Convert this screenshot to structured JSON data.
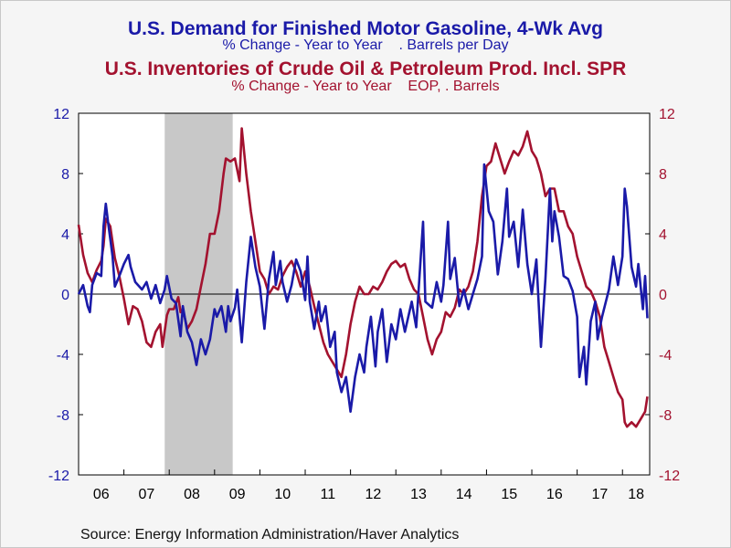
{
  "titles": {
    "series1_title": "U.S. Demand for Finished Motor Gasoline, 4-Wk Avg",
    "series1_subtitle": "% Change - Year to Year    . Barrels per Day",
    "series2_title": "U.S. Inventories of Crude Oil & Petroleum Prod. Incl. SPR",
    "series2_subtitle": "% Change - Year to Year    EOP, . Barrels"
  },
  "source": "Source:  Energy Information Administration/Haver Analytics",
  "colors": {
    "series1": "#1a1aa8",
    "series2": "#a3122f",
    "recession": "#c8c8c8",
    "plot_bg": "#ffffff",
    "page_bg": "#f5f5f5"
  },
  "chart_data": {
    "type": "line",
    "x_tick_labels": [
      "06",
      "07",
      "08",
      "09",
      "10",
      "11",
      "12",
      "13",
      "14",
      "15",
      "16",
      "17",
      "18"
    ],
    "xlim": [
      2006,
      2018.6
    ],
    "ylim": [
      -12,
      12
    ],
    "y_ticks": [
      -12,
      -8,
      -4,
      0,
      4,
      8,
      12
    ],
    "y_tick_labels": [
      "-12",
      "-8",
      "-4",
      "0",
      "4",
      "8",
      "12"
    ],
    "right_axis_ticks": [
      -12,
      -8,
      -4,
      0,
      4,
      8,
      12
    ],
    "right_axis_tick_labels": [
      "-12",
      "-8",
      "-4",
      "0",
      "4",
      "8",
      "12"
    ],
    "zero_line": true,
    "grid": false,
    "shaded_regions": [
      {
        "x0": 2007.9,
        "x1": 2009.4
      }
    ],
    "series": [
      {
        "points": [
          [
            2006.0,
            0.0
          ],
          [
            2006.1,
            0.6
          ],
          [
            2006.2,
            -0.8
          ],
          [
            2006.25,
            -1.2
          ],
          [
            2006.3,
            0.6
          ],
          [
            2006.4,
            1.4
          ],
          [
            2006.5,
            1.2
          ],
          [
            2006.55,
            4.5
          ],
          [
            2006.6,
            6.0
          ],
          [
            2006.65,
            4.8
          ],
          [
            2006.75,
            2.5
          ],
          [
            2006.8,
            0.5
          ],
          [
            2006.9,
            1.2
          ],
          [
            2007.0,
            2.0
          ],
          [
            2007.1,
            2.6
          ],
          [
            2007.15,
            1.8
          ],
          [
            2007.25,
            0.8
          ],
          [
            2007.4,
            0.3
          ],
          [
            2007.5,
            0.8
          ],
          [
            2007.6,
            -0.3
          ],
          [
            2007.7,
            0.6
          ],
          [
            2007.8,
            -0.6
          ],
          [
            2007.9,
            0.3
          ],
          [
            2007.95,
            1.2
          ],
          [
            2008.05,
            -0.3
          ],
          [
            2008.15,
            -0.6
          ],
          [
            2008.25,
            -2.8
          ],
          [
            2008.3,
            -0.8
          ],
          [
            2008.4,
            -2.5
          ],
          [
            2008.5,
            -3.2
          ],
          [
            2008.6,
            -4.7
          ],
          [
            2008.7,
            -3.0
          ],
          [
            2008.8,
            -4.0
          ],
          [
            2008.9,
            -3.0
          ],
          [
            2009.0,
            -1.0
          ],
          [
            2009.05,
            -1.5
          ],
          [
            2009.15,
            -0.8
          ],
          [
            2009.25,
            -2.5
          ],
          [
            2009.3,
            -0.8
          ],
          [
            2009.35,
            -1.8
          ],
          [
            2009.45,
            -0.9
          ],
          [
            2009.5,
            0.3
          ],
          [
            2009.6,
            -3.2
          ],
          [
            2009.7,
            0.8
          ],
          [
            2009.8,
            3.8
          ],
          [
            2009.9,
            1.8
          ],
          [
            2010.0,
            0.5
          ],
          [
            2010.1,
            -2.3
          ],
          [
            2010.2,
            1.0
          ],
          [
            2010.3,
            2.8
          ],
          [
            2010.35,
            0.6
          ],
          [
            2010.45,
            2.2
          ],
          [
            2010.5,
            0.8
          ],
          [
            2010.6,
            -0.5
          ],
          [
            2010.7,
            0.6
          ],
          [
            2010.8,
            2.3
          ],
          [
            2010.9,
            1.5
          ],
          [
            2011.0,
            -0.4
          ],
          [
            2011.05,
            2.5
          ],
          [
            2011.1,
            -0.5
          ],
          [
            2011.2,
            -2.3
          ],
          [
            2011.3,
            -0.5
          ],
          [
            2011.35,
            -1.8
          ],
          [
            2011.45,
            -0.8
          ],
          [
            2011.55,
            -3.5
          ],
          [
            2011.65,
            -2.5
          ],
          [
            2011.7,
            -5.2
          ],
          [
            2011.8,
            -6.5
          ],
          [
            2011.9,
            -5.5
          ],
          [
            2012.0,
            -7.8
          ],
          [
            2012.1,
            -5.5
          ],
          [
            2012.2,
            -4.0
          ],
          [
            2012.3,
            -5.2
          ],
          [
            2012.35,
            -3.5
          ],
          [
            2012.45,
            -1.5
          ],
          [
            2012.55,
            -4.8
          ],
          [
            2012.6,
            -2.5
          ],
          [
            2012.7,
            -1.0
          ],
          [
            2012.8,
            -4.5
          ],
          [
            2012.9,
            -2.0
          ],
          [
            2013.0,
            -3.0
          ],
          [
            2013.1,
            -1.0
          ],
          [
            2013.2,
            -2.5
          ],
          [
            2013.35,
            -0.5
          ],
          [
            2013.45,
            -2.2
          ],
          [
            2013.55,
            2.5
          ],
          [
            2013.6,
            4.8
          ],
          [
            2013.65,
            -0.5
          ],
          [
            2013.8,
            -0.9
          ],
          [
            2013.9,
            0.8
          ],
          [
            2014.0,
            -0.5
          ],
          [
            2014.05,
            0.6
          ],
          [
            2014.15,
            4.8
          ],
          [
            2014.2,
            1.0
          ],
          [
            2014.3,
            2.4
          ],
          [
            2014.4,
            -0.8
          ],
          [
            2014.5,
            0.3
          ],
          [
            2014.6,
            -1.0
          ],
          [
            2014.7,
            0.0
          ],
          [
            2014.8,
            1.0
          ],
          [
            2014.9,
            2.5
          ],
          [
            2014.95,
            8.6
          ],
          [
            2015.05,
            5.5
          ],
          [
            2015.15,
            4.8
          ],
          [
            2015.25,
            1.3
          ],
          [
            2015.35,
            3.5
          ],
          [
            2015.45,
            7.0
          ],
          [
            2015.5,
            3.8
          ],
          [
            2015.6,
            4.8
          ],
          [
            2015.7,
            1.8
          ],
          [
            2015.8,
            5.6
          ],
          [
            2015.9,
            2.0
          ],
          [
            2016.0,
            0.0
          ],
          [
            2016.1,
            2.3
          ],
          [
            2016.2,
            -3.5
          ],
          [
            2016.3,
            1.0
          ],
          [
            2016.4,
            7.0
          ],
          [
            2016.45,
            3.5
          ],
          [
            2016.5,
            5.5
          ],
          [
            2016.6,
            3.8
          ],
          [
            2016.7,
            1.2
          ],
          [
            2016.8,
            1.0
          ],
          [
            2016.9,
            0.2
          ],
          [
            2017.0,
            -1.5
          ],
          [
            2017.05,
            -5.5
          ],
          [
            2017.15,
            -3.5
          ],
          [
            2017.2,
            -6.0
          ],
          [
            2017.3,
            -1.8
          ],
          [
            2017.4,
            -0.5
          ],
          [
            2017.45,
            -3.0
          ],
          [
            2017.55,
            -1.5
          ],
          [
            2017.7,
            0.3
          ],
          [
            2017.8,
            2.5
          ],
          [
            2017.9,
            0.6
          ],
          [
            2018.0,
            2.5
          ],
          [
            2018.05,
            7.0
          ],
          [
            2018.1,
            5.8
          ],
          [
            2018.2,
            1.8
          ],
          [
            2018.3,
            0.5
          ],
          [
            2018.35,
            2.0
          ],
          [
            2018.45,
            -1.0
          ],
          [
            2018.5,
            1.2
          ],
          [
            2018.55,
            -1.6
          ]
        ]
      },
      {
        "points": [
          [
            2006.0,
            4.6
          ],
          [
            2006.1,
            2.6
          ],
          [
            2006.2,
            1.4
          ],
          [
            2006.3,
            0.8
          ],
          [
            2006.4,
            1.6
          ],
          [
            2006.5,
            2.2
          ],
          [
            2006.55,
            3.2
          ],
          [
            2006.6,
            5.0
          ],
          [
            2006.7,
            4.5
          ],
          [
            2006.8,
            2.4
          ],
          [
            2006.9,
            1.2
          ],
          [
            2007.0,
            -0.3
          ],
          [
            2007.1,
            -2.0
          ],
          [
            2007.2,
            -0.8
          ],
          [
            2007.3,
            -1.0
          ],
          [
            2007.4,
            -1.8
          ],
          [
            2007.5,
            -3.2
          ],
          [
            2007.6,
            -3.5
          ],
          [
            2007.7,
            -2.5
          ],
          [
            2007.8,
            -2.0
          ],
          [
            2007.85,
            -3.5
          ],
          [
            2007.95,
            -1.4
          ],
          [
            2008.0,
            -1.0
          ],
          [
            2008.1,
            -1.0
          ],
          [
            2008.2,
            -0.2
          ],
          [
            2008.25,
            -1.2
          ],
          [
            2008.3,
            -1.0
          ],
          [
            2008.4,
            -2.3
          ],
          [
            2008.5,
            -1.8
          ],
          [
            2008.6,
            -1.0
          ],
          [
            2008.7,
            0.5
          ],
          [
            2008.8,
            2.0
          ],
          [
            2008.9,
            4.0
          ],
          [
            2009.0,
            4.0
          ],
          [
            2009.1,
            5.5
          ],
          [
            2009.2,
            8.0
          ],
          [
            2009.25,
            9.0
          ],
          [
            2009.35,
            8.8
          ],
          [
            2009.45,
            9.0
          ],
          [
            2009.55,
            7.5
          ],
          [
            2009.6,
            11.0
          ],
          [
            2009.7,
            8.0
          ],
          [
            2009.8,
            5.5
          ],
          [
            2009.9,
            3.5
          ],
          [
            2010.0,
            1.5
          ],
          [
            2010.1,
            1.0
          ],
          [
            2010.2,
            0.0
          ],
          [
            2010.3,
            0.5
          ],
          [
            2010.4,
            0.3
          ],
          [
            2010.5,
            1.2
          ],
          [
            2010.6,
            1.8
          ],
          [
            2010.7,
            2.2
          ],
          [
            2010.8,
            1.5
          ],
          [
            2010.9,
            0.5
          ],
          [
            2011.0,
            1.5
          ],
          [
            2011.1,
            0.5
          ],
          [
            2011.2,
            -0.8
          ],
          [
            2011.3,
            -2.0
          ],
          [
            2011.4,
            -3.2
          ],
          [
            2011.5,
            -4.0
          ],
          [
            2011.6,
            -4.5
          ],
          [
            2011.7,
            -5.0
          ],
          [
            2011.8,
            -5.5
          ],
          [
            2011.9,
            -4.0
          ],
          [
            2012.0,
            -2.0
          ],
          [
            2012.1,
            -0.5
          ],
          [
            2012.2,
            0.5
          ],
          [
            2012.3,
            0.0
          ],
          [
            2012.4,
            0.0
          ],
          [
            2012.5,
            0.5
          ],
          [
            2012.6,
            0.3
          ],
          [
            2012.7,
            0.8
          ],
          [
            2012.8,
            1.5
          ],
          [
            2012.9,
            2.0
          ],
          [
            2013.0,
            2.2
          ],
          [
            2013.1,
            1.8
          ],
          [
            2013.2,
            2.0
          ],
          [
            2013.3,
            1.0
          ],
          [
            2013.4,
            0.3
          ],
          [
            2013.5,
            0.0
          ],
          [
            2013.6,
            -1.5
          ],
          [
            2013.7,
            -3.0
          ],
          [
            2013.8,
            -4.0
          ],
          [
            2013.9,
            -3.0
          ],
          [
            2014.0,
            -2.5
          ],
          [
            2014.1,
            -1.2
          ],
          [
            2014.2,
            -1.5
          ],
          [
            2014.3,
            -0.9
          ],
          [
            2014.4,
            0.3
          ],
          [
            2014.5,
            0.0
          ],
          [
            2014.6,
            0.5
          ],
          [
            2014.7,
            1.5
          ],
          [
            2014.8,
            3.5
          ],
          [
            2014.9,
            6.5
          ],
          [
            2015.0,
            8.5
          ],
          [
            2015.1,
            8.8
          ],
          [
            2015.2,
            10.0
          ],
          [
            2015.3,
            9.0
          ],
          [
            2015.4,
            8.0
          ],
          [
            2015.5,
            8.8
          ],
          [
            2015.6,
            9.5
          ],
          [
            2015.7,
            9.2
          ],
          [
            2015.8,
            9.8
          ],
          [
            2015.9,
            10.8
          ],
          [
            2016.0,
            9.5
          ],
          [
            2016.1,
            9.0
          ],
          [
            2016.2,
            8.0
          ],
          [
            2016.3,
            6.5
          ],
          [
            2016.4,
            7.0
          ],
          [
            2016.5,
            7.0
          ],
          [
            2016.6,
            5.5
          ],
          [
            2016.7,
            5.5
          ],
          [
            2016.8,
            4.5
          ],
          [
            2016.9,
            4.0
          ],
          [
            2017.0,
            2.5
          ],
          [
            2017.1,
            1.5
          ],
          [
            2017.2,
            0.5
          ],
          [
            2017.3,
            0.2
          ],
          [
            2017.4,
            -0.5
          ],
          [
            2017.5,
            -1.5
          ],
          [
            2017.6,
            -3.5
          ],
          [
            2017.7,
            -4.5
          ],
          [
            2017.8,
            -5.5
          ],
          [
            2017.9,
            -6.5
          ],
          [
            2018.0,
            -7.0
          ],
          [
            2018.05,
            -8.5
          ],
          [
            2018.1,
            -8.8
          ],
          [
            2018.2,
            -8.5
          ],
          [
            2018.3,
            -8.8
          ],
          [
            2018.4,
            -8.3
          ],
          [
            2018.5,
            -7.8
          ],
          [
            2018.55,
            -6.8
          ]
        ]
      }
    ]
  }
}
